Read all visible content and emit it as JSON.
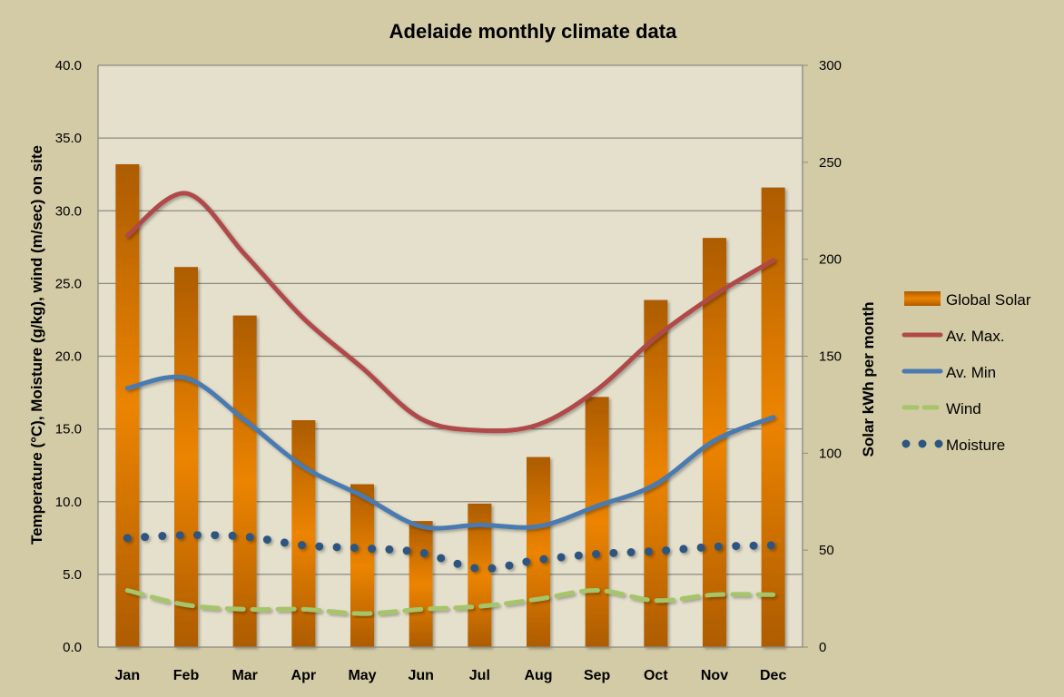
{
  "chart_data": {
    "type": "bar+line",
    "title": "Adelaide monthly climate data",
    "ylabel": "Temperature (°C), Moisture (g/kg), wind (m/sec) on site",
    "y2label": "Solar kWh per month",
    "ylim": [
      0,
      40
    ],
    "y2lim": [
      0,
      300
    ],
    "yticks": [
      "0.0",
      "5.0",
      "10.0",
      "15.0",
      "20.0",
      "25.0",
      "30.0",
      "35.0",
      "40.0"
    ],
    "y2ticks": [
      "0",
      "50",
      "100",
      "150",
      "200",
      "250",
      "300"
    ],
    "grid": true,
    "legend_position": "right",
    "categories": [
      "Jan",
      "Feb",
      "Mar",
      "Apr",
      "May",
      "Jun",
      "Jul",
      "Aug",
      "Sep",
      "Oct",
      "Nov",
      "Dec"
    ],
    "series": [
      {
        "name": "Global Solar",
        "kind": "bar",
        "axis": "right",
        "color": "#e07e00",
        "values": [
          249,
          196,
          171,
          117,
          84,
          65,
          74,
          98,
          129,
          179,
          211,
          237
        ]
      },
      {
        "name": "Av. Max.",
        "kind": "line",
        "axis": "left",
        "color": "#b04a48",
        "values": [
          28.3,
          31.2,
          27.0,
          22.6,
          19.2,
          15.7,
          14.9,
          15.3,
          17.7,
          21.3,
          24.2,
          26.6
        ]
      },
      {
        "name": "Av. Min",
        "kind": "line",
        "axis": "left",
        "color": "#4a7ab0",
        "values": [
          17.8,
          18.5,
          15.6,
          12.4,
          10.4,
          8.3,
          8.4,
          8.3,
          9.7,
          11.2,
          14.2,
          15.8
        ]
      },
      {
        "name": "Wind",
        "kind": "dashed",
        "axis": "left",
        "color": "#a6c46a",
        "values": [
          3.9,
          2.9,
          2.6,
          2.6,
          2.3,
          2.6,
          2.8,
          3.3,
          3.9,
          3.2,
          3.6,
          3.6
        ]
      },
      {
        "name": "Moisture",
        "kind": "dotted",
        "axis": "left",
        "color": "#2e5580",
        "values": [
          7.5,
          7.7,
          7.6,
          7.0,
          6.8,
          6.5,
          5.4,
          6.0,
          6.4,
          6.6,
          6.9,
          7.0
        ]
      }
    ]
  }
}
